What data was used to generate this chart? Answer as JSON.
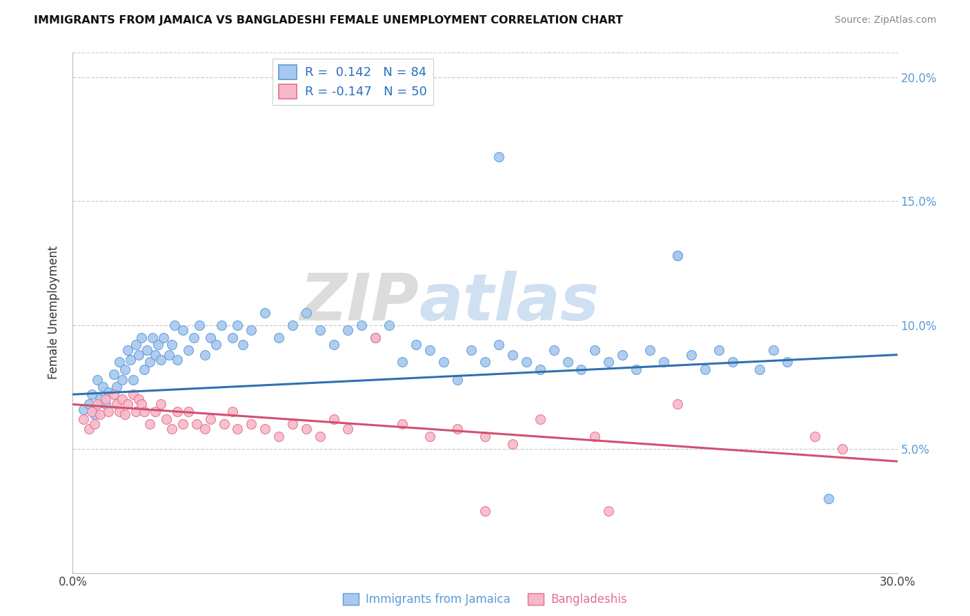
{
  "title": "IMMIGRANTS FROM JAMAICA VS BANGLADESHI FEMALE UNEMPLOYMENT CORRELATION CHART",
  "source": "Source: ZipAtlas.com",
  "ylabel": "Female Unemployment",
  "xlim": [
    0.0,
    0.3
  ],
  "ylim": [
    0.0,
    0.21
  ],
  "yticks": [
    0.05,
    0.1,
    0.15,
    0.2
  ],
  "ytick_labels": [
    "5.0%",
    "10.0%",
    "15.0%",
    "20.0%"
  ],
  "color_jamaica": "#a8c8f0",
  "color_bangladesh": "#f9b8c8",
  "edge_jamaica": "#5b9bd5",
  "edge_bangladesh": "#e07090",
  "trendline_color_jamaica": "#3070b0",
  "trendline_color_bangladesh": "#d05070",
  "watermark_text": "ZIPatlas",
  "scatter_jamaica": [
    [
      0.004,
      0.066
    ],
    [
      0.006,
      0.068
    ],
    [
      0.007,
      0.072
    ],
    [
      0.008,
      0.064
    ],
    [
      0.009,
      0.078
    ],
    [
      0.01,
      0.07
    ],
    [
      0.011,
      0.075
    ],
    [
      0.012,
      0.068
    ],
    [
      0.013,
      0.073
    ],
    [
      0.015,
      0.08
    ],
    [
      0.016,
      0.075
    ],
    [
      0.017,
      0.085
    ],
    [
      0.018,
      0.078
    ],
    [
      0.019,
      0.082
    ],
    [
      0.02,
      0.09
    ],
    [
      0.021,
      0.086
    ],
    [
      0.022,
      0.078
    ],
    [
      0.023,
      0.092
    ],
    [
      0.024,
      0.088
    ],
    [
      0.025,
      0.095
    ],
    [
      0.026,
      0.082
    ],
    [
      0.027,
      0.09
    ],
    [
      0.028,
      0.085
    ],
    [
      0.029,
      0.095
    ],
    [
      0.03,
      0.088
    ],
    [
      0.031,
      0.092
    ],
    [
      0.032,
      0.086
    ],
    [
      0.033,
      0.095
    ],
    [
      0.035,
      0.088
    ],
    [
      0.036,
      0.092
    ],
    [
      0.037,
      0.1
    ],
    [
      0.038,
      0.086
    ],
    [
      0.04,
      0.098
    ],
    [
      0.042,
      0.09
    ],
    [
      0.044,
      0.095
    ],
    [
      0.046,
      0.1
    ],
    [
      0.048,
      0.088
    ],
    [
      0.05,
      0.095
    ],
    [
      0.052,
      0.092
    ],
    [
      0.054,
      0.1
    ],
    [
      0.058,
      0.095
    ],
    [
      0.06,
      0.1
    ],
    [
      0.062,
      0.092
    ],
    [
      0.065,
      0.098
    ],
    [
      0.07,
      0.105
    ],
    [
      0.075,
      0.095
    ],
    [
      0.08,
      0.1
    ],
    [
      0.085,
      0.105
    ],
    [
      0.09,
      0.098
    ],
    [
      0.095,
      0.092
    ],
    [
      0.1,
      0.098
    ],
    [
      0.105,
      0.1
    ],
    [
      0.11,
      0.095
    ],
    [
      0.115,
      0.1
    ],
    [
      0.12,
      0.085
    ],
    [
      0.125,
      0.092
    ],
    [
      0.13,
      0.09
    ],
    [
      0.135,
      0.085
    ],
    [
      0.14,
      0.078
    ],
    [
      0.145,
      0.09
    ],
    [
      0.15,
      0.085
    ],
    [
      0.155,
      0.092
    ],
    [
      0.16,
      0.088
    ],
    [
      0.165,
      0.085
    ],
    [
      0.17,
      0.082
    ],
    [
      0.175,
      0.09
    ],
    [
      0.18,
      0.085
    ],
    [
      0.185,
      0.082
    ],
    [
      0.19,
      0.09
    ],
    [
      0.195,
      0.085
    ],
    [
      0.2,
      0.088
    ],
    [
      0.205,
      0.082
    ],
    [
      0.21,
      0.09
    ],
    [
      0.215,
      0.085
    ],
    [
      0.22,
      0.128
    ],
    [
      0.225,
      0.088
    ],
    [
      0.23,
      0.082
    ],
    [
      0.235,
      0.09
    ],
    [
      0.24,
      0.085
    ],
    [
      0.25,
      0.082
    ],
    [
      0.255,
      0.09
    ],
    [
      0.26,
      0.085
    ],
    [
      0.275,
      0.03
    ],
    [
      0.155,
      0.168
    ],
    [
      0.22,
      0.128
    ]
  ],
  "scatter_bangladesh": [
    [
      0.004,
      0.062
    ],
    [
      0.006,
      0.058
    ],
    [
      0.007,
      0.065
    ],
    [
      0.008,
      0.06
    ],
    [
      0.009,
      0.068
    ],
    [
      0.01,
      0.064
    ],
    [
      0.012,
      0.07
    ],
    [
      0.013,
      0.065
    ],
    [
      0.015,
      0.072
    ],
    [
      0.016,
      0.068
    ],
    [
      0.017,
      0.065
    ],
    [
      0.018,
      0.07
    ],
    [
      0.019,
      0.064
    ],
    [
      0.02,
      0.068
    ],
    [
      0.022,
      0.072
    ],
    [
      0.023,
      0.065
    ],
    [
      0.024,
      0.07
    ],
    [
      0.025,
      0.068
    ],
    [
      0.026,
      0.065
    ],
    [
      0.028,
      0.06
    ],
    [
      0.03,
      0.065
    ],
    [
      0.032,
      0.068
    ],
    [
      0.034,
      0.062
    ],
    [
      0.036,
      0.058
    ],
    [
      0.038,
      0.065
    ],
    [
      0.04,
      0.06
    ],
    [
      0.042,
      0.065
    ],
    [
      0.045,
      0.06
    ],
    [
      0.048,
      0.058
    ],
    [
      0.05,
      0.062
    ],
    [
      0.055,
      0.06
    ],
    [
      0.058,
      0.065
    ],
    [
      0.06,
      0.058
    ],
    [
      0.065,
      0.06
    ],
    [
      0.07,
      0.058
    ],
    [
      0.075,
      0.055
    ],
    [
      0.08,
      0.06
    ],
    [
      0.085,
      0.058
    ],
    [
      0.09,
      0.055
    ],
    [
      0.095,
      0.062
    ],
    [
      0.1,
      0.058
    ],
    [
      0.11,
      0.095
    ],
    [
      0.12,
      0.06
    ],
    [
      0.13,
      0.055
    ],
    [
      0.14,
      0.058
    ],
    [
      0.15,
      0.055
    ],
    [
      0.16,
      0.052
    ],
    [
      0.17,
      0.062
    ],
    [
      0.19,
      0.055
    ],
    [
      0.22,
      0.068
    ],
    [
      0.15,
      0.025
    ],
    [
      0.195,
      0.025
    ],
    [
      0.27,
      0.055
    ],
    [
      0.28,
      0.05
    ]
  ]
}
